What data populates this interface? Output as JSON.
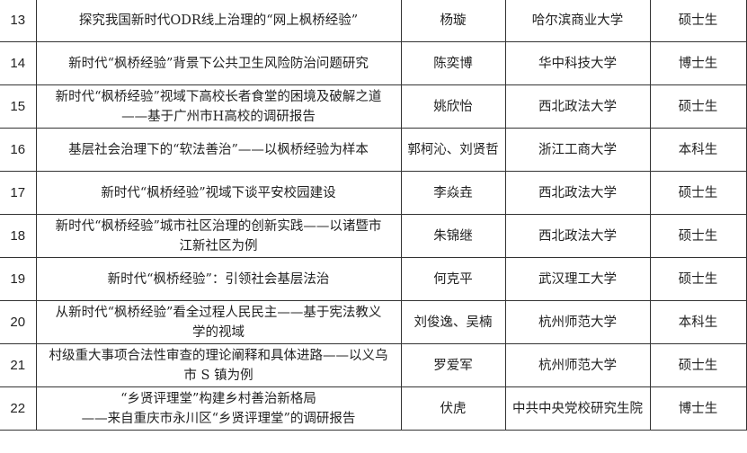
{
  "rows": [
    {
      "no": "13",
      "title": [
        "探究我国新时代ODR线上治理的“网上枫桥经验”"
      ],
      "author": "杨璇",
      "school": "哈尔滨商业大学",
      "degree": "硕士生"
    },
    {
      "no": "14",
      "title": [
        "新时代“枫桥经验”背景下公共卫生风险防治问题研究"
      ],
      "author": "陈奕博",
      "school": "华中科技大学",
      "degree": "博士生"
    },
    {
      "no": "15",
      "title": [
        "新时代“枫桥经验”视域下高校长者食堂的困境及破解之道",
        "——基于广州市H高校的调研报告"
      ],
      "author": "姚欣怡",
      "school": "西北政法大学",
      "degree": "硕士生"
    },
    {
      "no": "16",
      "title": [
        "基层社会治理下的“软法善治”——以枫桥经验为样本"
      ],
      "author": "郭柯沁、刘贤哲",
      "school": "浙江工商大学",
      "degree": "本科生"
    },
    {
      "no": "17",
      "title": [
        "新时代“枫桥经验”视域下谈平安校园建设"
      ],
      "author": "李焱垚",
      "school": "西北政法大学",
      "degree": "硕士生"
    },
    {
      "no": "18",
      "title": [
        "新时代“枫桥经验”城市社区治理的创新实践——以诸暨市",
        "江新社区为例"
      ],
      "author": "朱锦继",
      "school": "西北政法大学",
      "degree": "硕士生"
    },
    {
      "no": "19",
      "title": [
        "新时代“枫桥经验”：引领社会基层法治"
      ],
      "author": "何克平",
      "school": "武汉理工大学",
      "degree": "硕士生"
    },
    {
      "no": "20",
      "title": [
        "从新时代“枫桥经验”看全过程人民民主——基于宪法教义",
        "学的视域"
      ],
      "author": "刘俊逸、吴楠",
      "school": "杭州师范大学",
      "degree": "本科生"
    },
    {
      "no": "21",
      "title": [
        "村级重大事项合法性审查的理论阐释和具体进路——以义乌",
        "市 S 镇为例"
      ],
      "author": "罗爱军",
      "school": "杭州师范大学",
      "degree": "硕士生"
    },
    {
      "no": "22",
      "title": [
        "“乡贤评理堂”构建乡村善治新格局",
        "——来自重庆市永川区“乡贤评理堂”的调研报告"
      ],
      "author": "伏虎",
      "school": "中共中央党校研究生院",
      "degree": "博士生"
    }
  ]
}
